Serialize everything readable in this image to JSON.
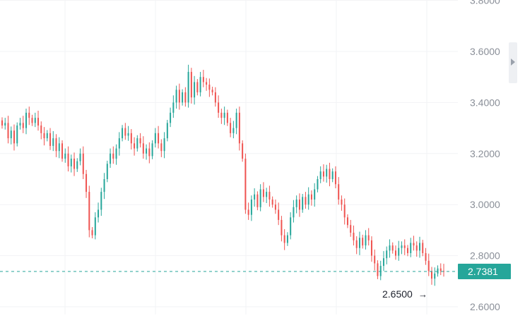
{
  "colors": {
    "up": "#26a69a",
    "down": "#ef5350",
    "last_price": "#26a69a",
    "grid": "#f2f3f5",
    "axis_text": "#8a8f98",
    "low_text": "#1e222d"
  },
  "last_price_label": "2.7381",
  "low_marker_label": "2.6500",
  "low_marker_arrow": "→",
  "chart_data": {
    "type": "candlestick",
    "y_axis_position": "right",
    "y_ticks": [
      "3.8000",
      "3.6000",
      "3.4000",
      "3.2000",
      "3.0000",
      "2.8000",
      "2.6000"
    ],
    "ylim": [
      2.6,
      3.8
    ],
    "grid": true,
    "last_price": 2.7381,
    "low_marker": 2.65,
    "closes": [
      3.31,
      3.32,
      3.26,
      3.29,
      3.24,
      3.31,
      3.32,
      3.3,
      3.36,
      3.34,
      3.32,
      3.34,
      3.31,
      3.28,
      3.26,
      3.28,
      3.23,
      3.26,
      3.21,
      3.24,
      3.18,
      3.2,
      3.15,
      3.18,
      3.14,
      3.17,
      3.2,
      3.12,
      3.05,
      2.9,
      2.88,
      2.95,
      2.98,
      3.05,
      3.1,
      3.16,
      3.2,
      3.18,
      3.22,
      3.26,
      3.3,
      3.27,
      3.28,
      3.24,
      3.22,
      3.26,
      3.24,
      3.2,
      3.22,
      3.19,
      3.24,
      3.28,
      3.24,
      3.21,
      3.26,
      3.32,
      3.36,
      3.4,
      3.45,
      3.4,
      3.44,
      3.4,
      3.52,
      3.42,
      3.48,
      3.44,
      3.5,
      3.48,
      3.47,
      3.45,
      3.44,
      3.4,
      3.36,
      3.34,
      3.36,
      3.32,
      3.28,
      3.3,
      3.36,
      3.24,
      3.18,
      2.98,
      2.96,
      3.02,
      3.04,
      2.99,
      3.06,
      3.03,
      3.05,
      3.02,
      3.0,
      2.98,
      2.94,
      2.88,
      2.85,
      2.88,
      2.95,
      2.99,
      3.02,
      2.98,
      3.03,
      3.0,
      3.04,
      3.02,
      3.06,
      3.1,
      3.13,
      3.11,
      3.14,
      3.1,
      3.13,
      3.08,
      3.02,
      3.0,
      2.95,
      2.92,
      2.89,
      2.86,
      2.83,
      2.87,
      2.84,
      2.88,
      2.86,
      2.8,
      2.77,
      2.72,
      2.76,
      2.79,
      2.82,
      2.84,
      2.82,
      2.8,
      2.83,
      2.84,
      2.83,
      2.81,
      2.85,
      2.84,
      2.82,
      2.85,
      2.81,
      2.78,
      2.74,
      2.71,
      2.73,
      2.75,
      2.74,
      2.738
    ]
  }
}
